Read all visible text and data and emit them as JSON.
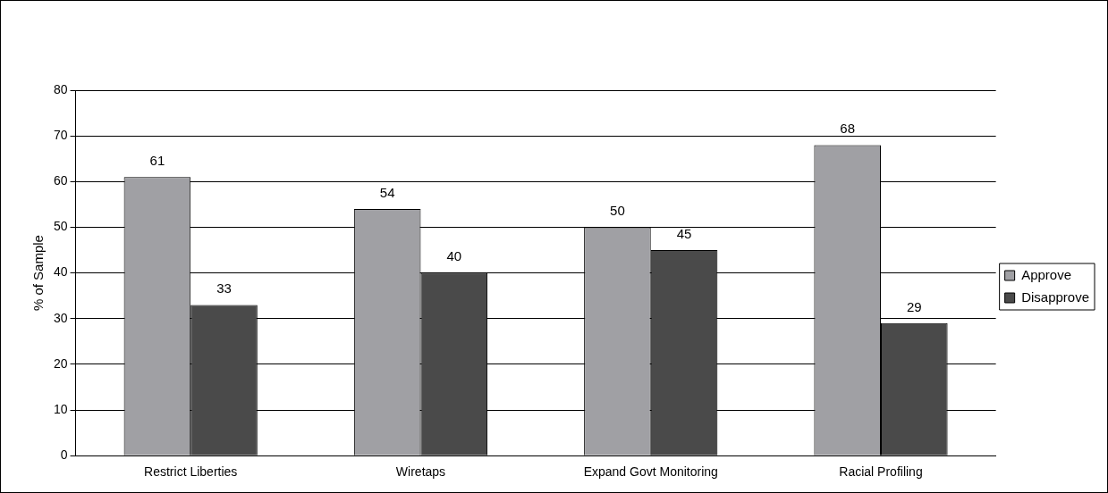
{
  "chart_data": {
    "type": "bar",
    "ylabel": "% of Sample",
    "categories": [
      "Restrict Liberties",
      "Wiretaps",
      "Expand Govt Monitoring",
      "Racial Profiling"
    ],
    "series": [
      {
        "name": "Approve",
        "color": "#a0a0a4",
        "values": [
          61,
          54,
          50,
          68
        ]
      },
      {
        "name": "Disapprove",
        "color": "#4a4a4a",
        "values": [
          33,
          40,
          45,
          29
        ]
      }
    ],
    "ylim": [
      0,
      80
    ],
    "yticks": [
      0,
      10,
      20,
      30,
      40,
      50,
      60,
      70,
      80
    ],
    "grid": "y",
    "legend": "right",
    "data_labels": true
  }
}
